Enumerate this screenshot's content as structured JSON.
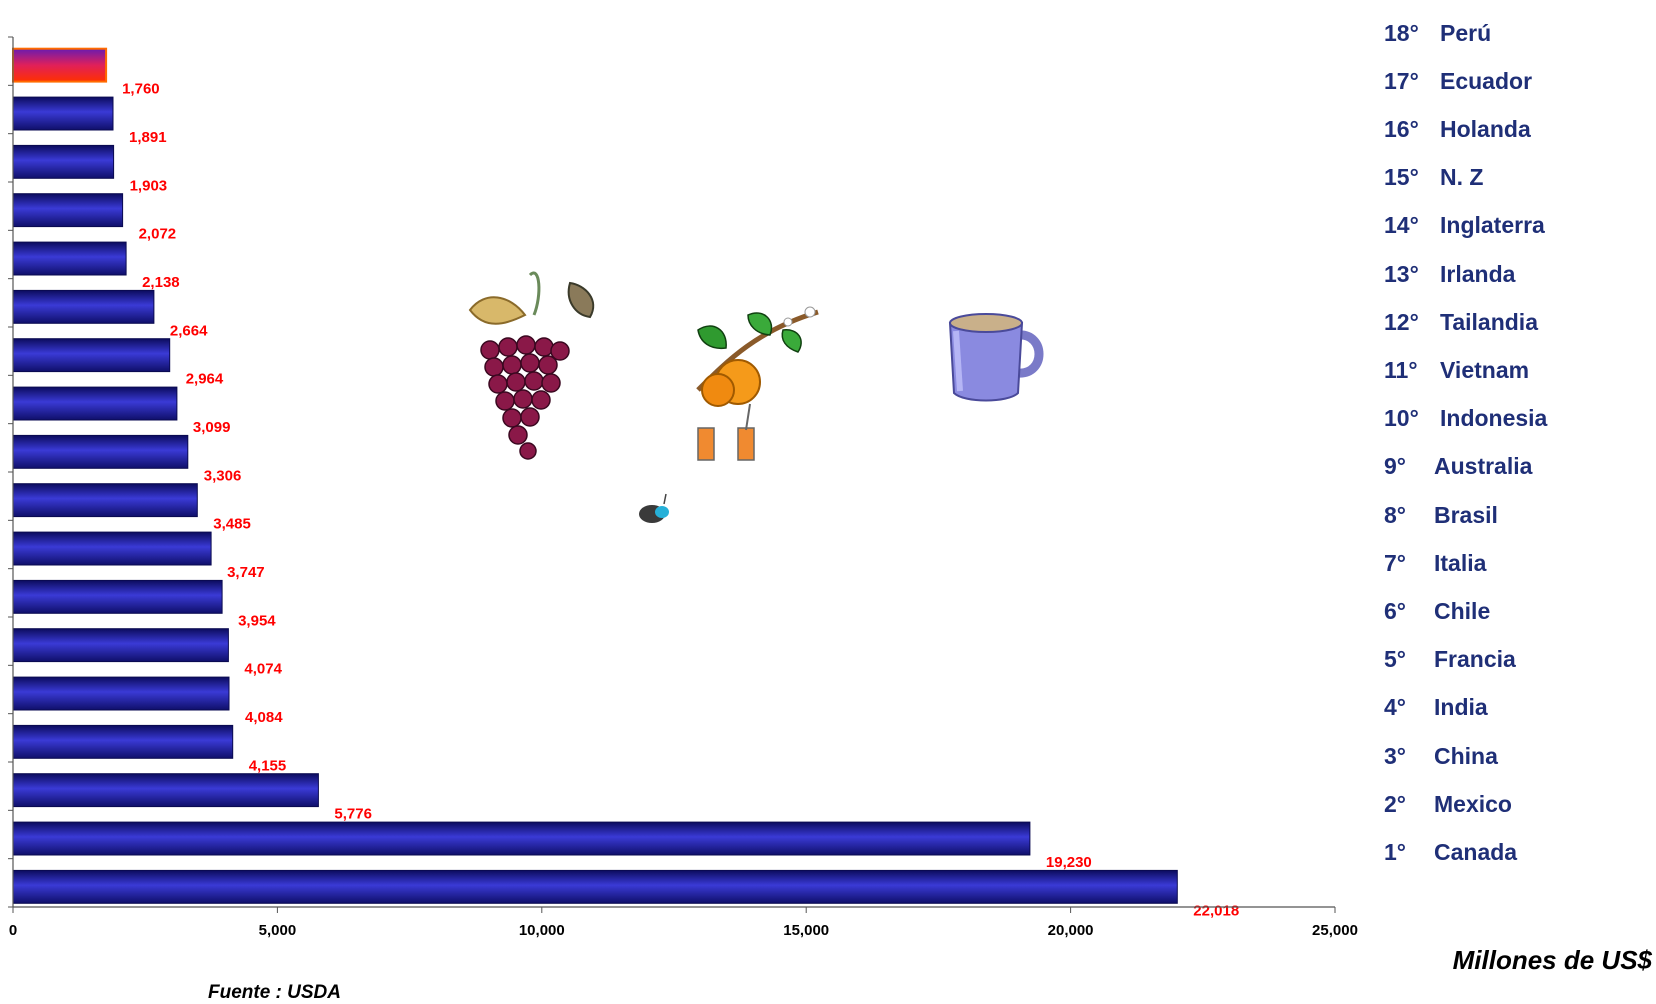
{
  "chart_data": {
    "type": "bar",
    "orientation": "horizontal",
    "categories": [
      "Perú",
      "Ecuador",
      "Holanda",
      "N. Z",
      "Inglaterra",
      "Irlanda",
      "Tailandia",
      "Vietnam",
      "Indonesia",
      "Australia",
      "Brasil",
      "Italia",
      "Chile",
      "Francia",
      "India",
      "China",
      "Mexico",
      "Canada"
    ],
    "values": [
      1760,
      1891,
      1903,
      2072,
      2138,
      2664,
      2964,
      3099,
      3306,
      3485,
      3747,
      3954,
      4074,
      4084,
      4155,
      5776,
      19230,
      22018
    ],
    "value_labels": [
      "1,760",
      "1,891",
      "1,903",
      "2,072",
      "2,138",
      "2,664",
      "2,964",
      "3,099",
      "3,306",
      "3,485",
      "3,747",
      "3,954",
      "4,074",
      "4,084",
      "4,155",
      "5,776",
      "19,230",
      "22,018"
    ],
    "highlight_index": 0,
    "xlim": [
      0,
      25000
    ],
    "xticks": [
      0,
      5000,
      10000,
      15000,
      20000,
      25000
    ],
    "xtick_labels": [
      "0",
      "5,000",
      "10,000",
      "15,000",
      "20,000",
      "25,000"
    ],
    "xlabel": "Millones de US$",
    "grid": false,
    "bar_color": "#23239b",
    "highlight_color": "#e8281c",
    "value_label_color": "#ff0000"
  },
  "rank_list": [
    {
      "rank": "18°",
      "name": "Perú"
    },
    {
      "rank": "17°",
      "name": "Ecuador"
    },
    {
      "rank": "16°",
      "name": "Holanda"
    },
    {
      "rank": "15°",
      "name": "N. Z"
    },
    {
      "rank": "14°",
      "name": "Inglaterra"
    },
    {
      "rank": "13°",
      "name": "Irlanda"
    },
    {
      "rank": "12°",
      "name": "Tailandia"
    },
    {
      "rank": "11°",
      "name": "Vietnam"
    },
    {
      "rank": "10°",
      "name": "Indonesia"
    },
    {
      "rank": "9°",
      "name": "Australia"
    },
    {
      "rank": "8°",
      "name": "Brasil"
    },
    {
      "rank": "7°",
      "name": "Italia"
    },
    {
      "rank": "6°",
      "name": "Chile"
    },
    {
      "rank": "5°",
      "name": "Francia"
    },
    {
      "rank": "4°",
      "name": "India"
    },
    {
      "rank": "3°",
      "name": "China"
    },
    {
      "rank": "2°",
      "name": "Mexico"
    },
    {
      "rank": "1°",
      "name": "Canada"
    }
  ],
  "unit_label": "Millones de US$",
  "source": "Fuente : USDA",
  "clipart": [
    "grapes-icon",
    "orange-juice-icon",
    "coffee-mug-icon",
    "bee-icon"
  ],
  "colors": {
    "rank_text": "#1f2f77"
  }
}
